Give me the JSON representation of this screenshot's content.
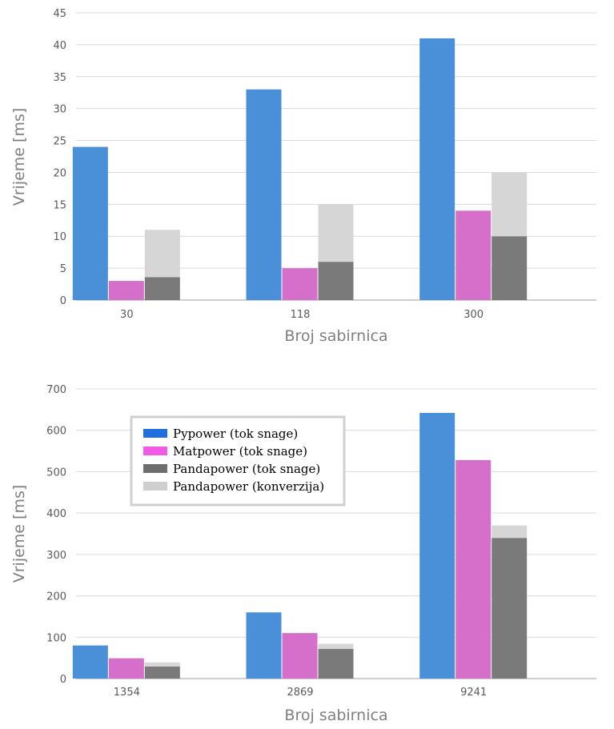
{
  "colors": {
    "pypower": "#4a90d9",
    "matpower": "#d56fc9",
    "pandapower_flow": "#7a7a7a",
    "pandapower_conv": "#d6d6d6",
    "grid": "#d9d9d9",
    "axis": "#bfbfbf",
    "legend_border": "#d0d0d0"
  },
  "legend": [
    {
      "label": "Pypower (tok snage)",
      "color": "#1f6fe0"
    },
    {
      "label": "Matpower (tok snage)",
      "color": "#f05ae6"
    },
    {
      "label": "Pandapower (tok snage)",
      "color": "#6e6e6e"
    },
    {
      "label": "Pandapower (konverzija)",
      "color": "#cfcfcf"
    }
  ],
  "chart_data": [
    {
      "type": "bar",
      "categories": [
        "30",
        "118",
        "300"
      ],
      "xlabel": "Broj sabirnica",
      "ylabel": "Vrijeme [ms]",
      "ylim": [
        0,
        45
      ],
      "yticks": [
        "0",
        "5",
        "10",
        "15",
        "20",
        "25",
        "30",
        "35",
        "40",
        "45"
      ],
      "grid": true,
      "series": [
        {
          "name": "Pypower (tok snage)",
          "values": [
            24,
            33,
            41
          ]
        },
        {
          "name": "Matpower (tok snage)",
          "values": [
            3,
            5,
            14
          ]
        },
        {
          "name": "Pandapower (tok snage)",
          "values": [
            3.6,
            6,
            10
          ],
          "stack": "pandapower"
        },
        {
          "name": "Pandapower (konverzija)",
          "values": [
            7.4,
            9,
            10
          ],
          "stack": "pandapower"
        }
      ]
    },
    {
      "type": "bar",
      "categories": [
        "1354",
        "2869",
        "9241"
      ],
      "xlabel": "Broj sabirnica",
      "ylabel": "Vrijeme [ms]",
      "ylim": [
        0,
        700
      ],
      "yticks": [
        "0",
        "100",
        "200",
        "300",
        "400",
        "500",
        "600",
        "700"
      ],
      "grid": true,
      "legend_position": "top-left",
      "series": [
        {
          "name": "Pypower (tok snage)",
          "values": [
            80,
            160,
            642
          ]
        },
        {
          "name": "Matpower (tok snage)",
          "values": [
            49,
            110,
            528
          ]
        },
        {
          "name": "Pandapower (tok snage)",
          "values": [
            29,
            72,
            340
          ],
          "stack": "pandapower"
        },
        {
          "name": "Pandapower (konverzija)",
          "values": [
            10,
            12,
            30
          ],
          "stack": "pandapower"
        }
      ]
    }
  ]
}
